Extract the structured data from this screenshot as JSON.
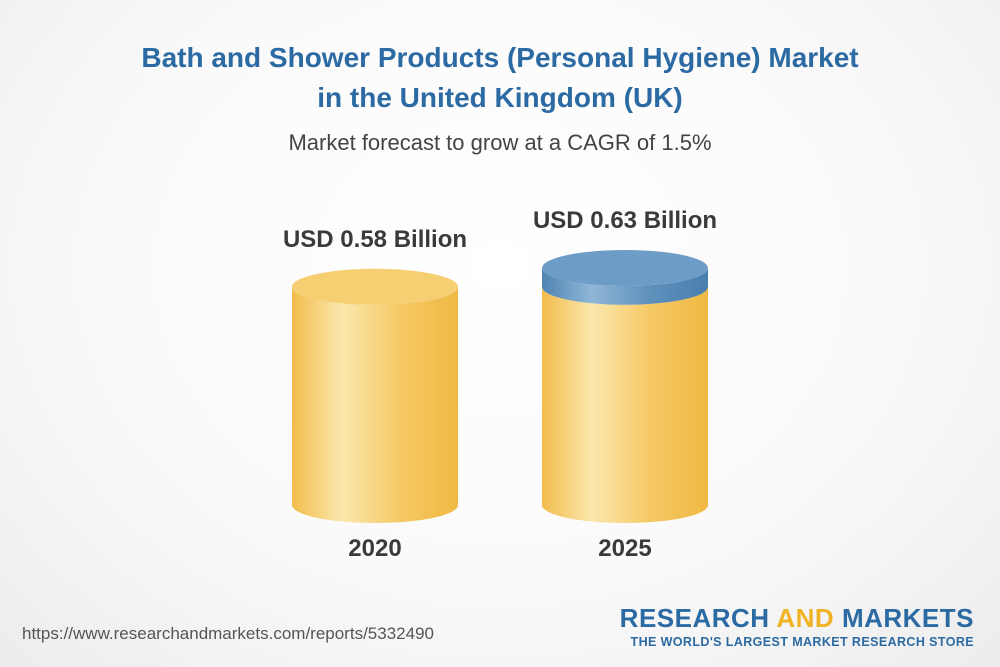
{
  "title": {
    "line1": "Bath and Shower Products (Personal Hygiene) Market",
    "line2": "in the United Kingdom (UK)"
  },
  "subtitle": "Market forecast to grow at a CAGR of 1.5%",
  "chart_data": {
    "type": "bar",
    "style": "3d-cylinder",
    "categories": [
      "2020",
      "2025"
    ],
    "values": [
      0.58,
      0.63
    ],
    "value_labels": [
      "USD 0.58 Billion",
      "USD 0.63 Billion"
    ],
    "unit": "USD Billion",
    "ylim": [
      0,
      0.63
    ],
    "xlabel": "",
    "ylabel": "",
    "grid": false,
    "colors": {
      "body": "#f4c55a",
      "body_highlight": "#fbe7ad",
      "top": "#f6cf72",
      "growth_band": "#5c8fbb",
      "growth_band_top": "#6d9dc6"
    }
  },
  "footer": {
    "source_url": "https://www.researchandmarkets.com/reports/5332490",
    "brand_word1": "RESEARCH",
    "brand_word2": "AND",
    "brand_word3": "MARKETS",
    "brand_tagline": "THE WORLD'S LARGEST MARKET RESEARCH STORE"
  }
}
